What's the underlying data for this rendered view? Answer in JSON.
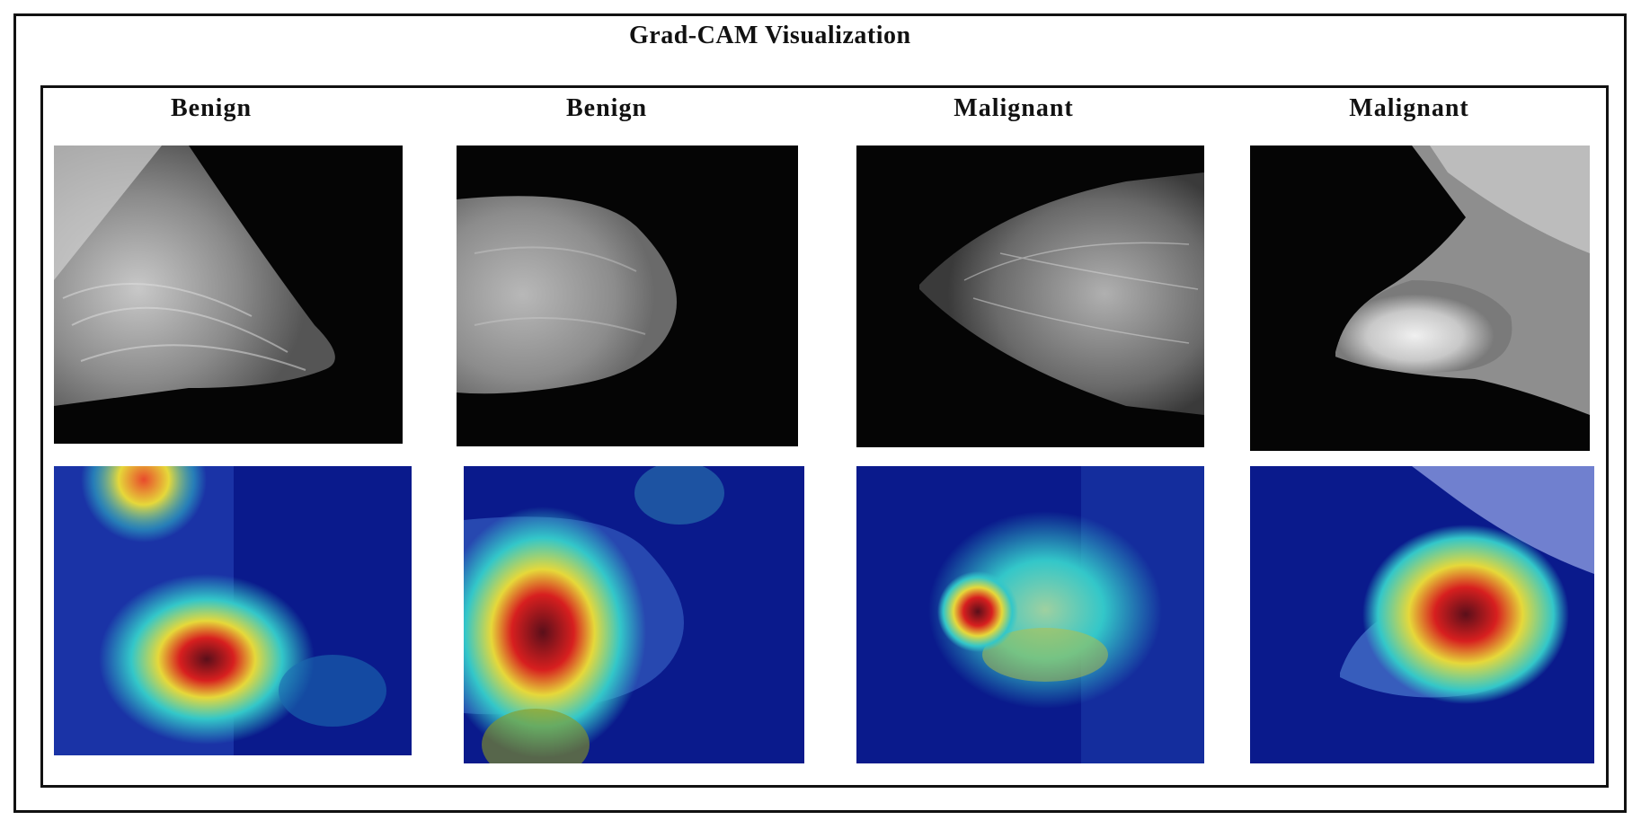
{
  "title": "Grad-CAM Visualization",
  "columns": [
    {
      "label": "Benign"
    },
    {
      "label": "Benign"
    },
    {
      "label": "Malignant"
    },
    {
      "label": "Malignant"
    }
  ],
  "rows": [
    "original-mammogram",
    "grad-cam-heatmap"
  ],
  "colors": {
    "frame": "#111111",
    "heatmap_low": "#0a1a8c",
    "heatmap_mid": "#33c7c9",
    "heatmap_warm": "#e6d83a",
    "heatmap_hot": "#d71f1f"
  }
}
